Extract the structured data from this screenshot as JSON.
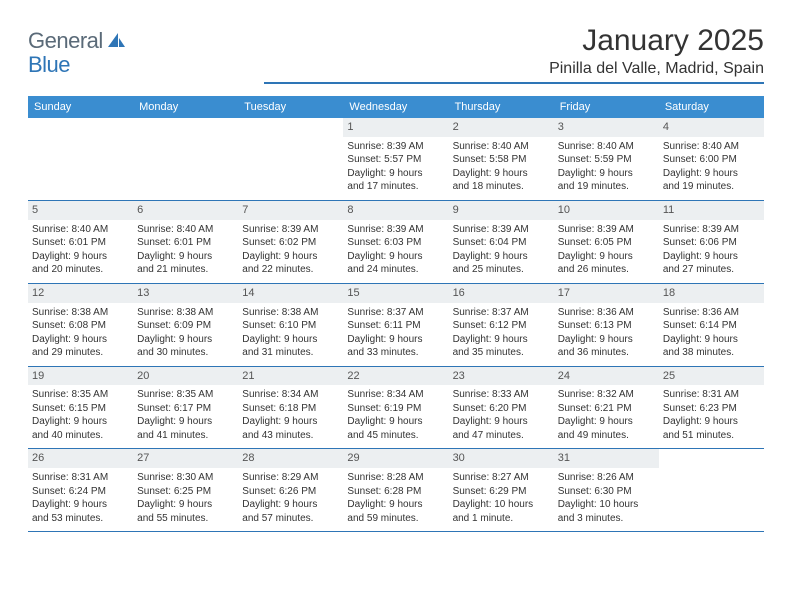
{
  "logo": {
    "general": "General",
    "blue": "Blue"
  },
  "title": "January 2025",
  "location": "Pinilla del Valle, Madrid, Spain",
  "colors": {
    "header_bg": "#3a8dd0",
    "rule": "#2e75b6",
    "daynum_bg": "#eceff1",
    "text": "#333333",
    "logo_gray": "#5a6a78",
    "logo_blue": "#2e75b6"
  },
  "weekdays": [
    "Sunday",
    "Monday",
    "Tuesday",
    "Wednesday",
    "Thursday",
    "Friday",
    "Saturday"
  ],
  "weeks": [
    [
      null,
      null,
      null,
      {
        "n": "1",
        "sr": "Sunrise: 8:39 AM",
        "ss": "Sunset: 5:57 PM",
        "d1": "Daylight: 9 hours",
        "d2": "and 17 minutes."
      },
      {
        "n": "2",
        "sr": "Sunrise: 8:40 AM",
        "ss": "Sunset: 5:58 PM",
        "d1": "Daylight: 9 hours",
        "d2": "and 18 minutes."
      },
      {
        "n": "3",
        "sr": "Sunrise: 8:40 AM",
        "ss": "Sunset: 5:59 PM",
        "d1": "Daylight: 9 hours",
        "d2": "and 19 minutes."
      },
      {
        "n": "4",
        "sr": "Sunrise: 8:40 AM",
        "ss": "Sunset: 6:00 PM",
        "d1": "Daylight: 9 hours",
        "d2": "and 19 minutes."
      }
    ],
    [
      {
        "n": "5",
        "sr": "Sunrise: 8:40 AM",
        "ss": "Sunset: 6:01 PM",
        "d1": "Daylight: 9 hours",
        "d2": "and 20 minutes."
      },
      {
        "n": "6",
        "sr": "Sunrise: 8:40 AM",
        "ss": "Sunset: 6:01 PM",
        "d1": "Daylight: 9 hours",
        "d2": "and 21 minutes."
      },
      {
        "n": "7",
        "sr": "Sunrise: 8:39 AM",
        "ss": "Sunset: 6:02 PM",
        "d1": "Daylight: 9 hours",
        "d2": "and 22 minutes."
      },
      {
        "n": "8",
        "sr": "Sunrise: 8:39 AM",
        "ss": "Sunset: 6:03 PM",
        "d1": "Daylight: 9 hours",
        "d2": "and 24 minutes."
      },
      {
        "n": "9",
        "sr": "Sunrise: 8:39 AM",
        "ss": "Sunset: 6:04 PM",
        "d1": "Daylight: 9 hours",
        "d2": "and 25 minutes."
      },
      {
        "n": "10",
        "sr": "Sunrise: 8:39 AM",
        "ss": "Sunset: 6:05 PM",
        "d1": "Daylight: 9 hours",
        "d2": "and 26 minutes."
      },
      {
        "n": "11",
        "sr": "Sunrise: 8:39 AM",
        "ss": "Sunset: 6:06 PM",
        "d1": "Daylight: 9 hours",
        "d2": "and 27 minutes."
      }
    ],
    [
      {
        "n": "12",
        "sr": "Sunrise: 8:38 AM",
        "ss": "Sunset: 6:08 PM",
        "d1": "Daylight: 9 hours",
        "d2": "and 29 minutes."
      },
      {
        "n": "13",
        "sr": "Sunrise: 8:38 AM",
        "ss": "Sunset: 6:09 PM",
        "d1": "Daylight: 9 hours",
        "d2": "and 30 minutes."
      },
      {
        "n": "14",
        "sr": "Sunrise: 8:38 AM",
        "ss": "Sunset: 6:10 PM",
        "d1": "Daylight: 9 hours",
        "d2": "and 31 minutes."
      },
      {
        "n": "15",
        "sr": "Sunrise: 8:37 AM",
        "ss": "Sunset: 6:11 PM",
        "d1": "Daylight: 9 hours",
        "d2": "and 33 minutes."
      },
      {
        "n": "16",
        "sr": "Sunrise: 8:37 AM",
        "ss": "Sunset: 6:12 PM",
        "d1": "Daylight: 9 hours",
        "d2": "and 35 minutes."
      },
      {
        "n": "17",
        "sr": "Sunrise: 8:36 AM",
        "ss": "Sunset: 6:13 PM",
        "d1": "Daylight: 9 hours",
        "d2": "and 36 minutes."
      },
      {
        "n": "18",
        "sr": "Sunrise: 8:36 AM",
        "ss": "Sunset: 6:14 PM",
        "d1": "Daylight: 9 hours",
        "d2": "and 38 minutes."
      }
    ],
    [
      {
        "n": "19",
        "sr": "Sunrise: 8:35 AM",
        "ss": "Sunset: 6:15 PM",
        "d1": "Daylight: 9 hours",
        "d2": "and 40 minutes."
      },
      {
        "n": "20",
        "sr": "Sunrise: 8:35 AM",
        "ss": "Sunset: 6:17 PM",
        "d1": "Daylight: 9 hours",
        "d2": "and 41 minutes."
      },
      {
        "n": "21",
        "sr": "Sunrise: 8:34 AM",
        "ss": "Sunset: 6:18 PM",
        "d1": "Daylight: 9 hours",
        "d2": "and 43 minutes."
      },
      {
        "n": "22",
        "sr": "Sunrise: 8:34 AM",
        "ss": "Sunset: 6:19 PM",
        "d1": "Daylight: 9 hours",
        "d2": "and 45 minutes."
      },
      {
        "n": "23",
        "sr": "Sunrise: 8:33 AM",
        "ss": "Sunset: 6:20 PM",
        "d1": "Daylight: 9 hours",
        "d2": "and 47 minutes."
      },
      {
        "n": "24",
        "sr": "Sunrise: 8:32 AM",
        "ss": "Sunset: 6:21 PM",
        "d1": "Daylight: 9 hours",
        "d2": "and 49 minutes."
      },
      {
        "n": "25",
        "sr": "Sunrise: 8:31 AM",
        "ss": "Sunset: 6:23 PM",
        "d1": "Daylight: 9 hours",
        "d2": "and 51 minutes."
      }
    ],
    [
      {
        "n": "26",
        "sr": "Sunrise: 8:31 AM",
        "ss": "Sunset: 6:24 PM",
        "d1": "Daylight: 9 hours",
        "d2": "and 53 minutes."
      },
      {
        "n": "27",
        "sr": "Sunrise: 8:30 AM",
        "ss": "Sunset: 6:25 PM",
        "d1": "Daylight: 9 hours",
        "d2": "and 55 minutes."
      },
      {
        "n": "28",
        "sr": "Sunrise: 8:29 AM",
        "ss": "Sunset: 6:26 PM",
        "d1": "Daylight: 9 hours",
        "d2": "and 57 minutes."
      },
      {
        "n": "29",
        "sr": "Sunrise: 8:28 AM",
        "ss": "Sunset: 6:28 PM",
        "d1": "Daylight: 9 hours",
        "d2": "and 59 minutes."
      },
      {
        "n": "30",
        "sr": "Sunrise: 8:27 AM",
        "ss": "Sunset: 6:29 PM",
        "d1": "Daylight: 10 hours",
        "d2": "and 1 minute."
      },
      {
        "n": "31",
        "sr": "Sunrise: 8:26 AM",
        "ss": "Sunset: 6:30 PM",
        "d1": "Daylight: 10 hours",
        "d2": "and 3 minutes."
      },
      null
    ]
  ]
}
